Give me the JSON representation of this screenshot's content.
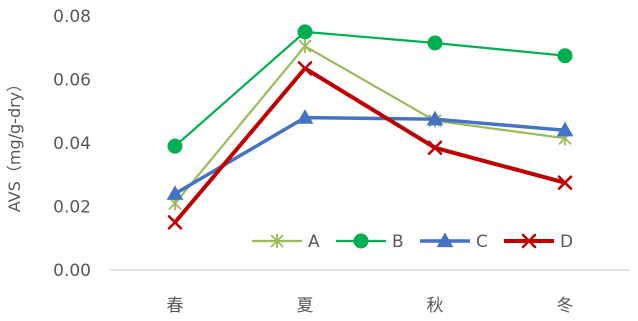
{
  "chart_data": {
    "type": "line",
    "categories": [
      "春",
      "夏",
      "秋",
      "冬"
    ],
    "ylabel": "AVS（mg/g-dry）",
    "ylim": [
      0,
      0.08
    ],
    "yticks": [
      "0.00",
      "0.02",
      "0.04",
      "0.06",
      "0.08"
    ],
    "grid": false,
    "legend": "bottom-right",
    "series": [
      {
        "name": "A",
        "color": "#9BBB59",
        "marker": "star",
        "values": [
          0.021,
          0.0705,
          0.047,
          0.0415
        ]
      },
      {
        "name": "B",
        "color": "#00B050",
        "marker": "circle",
        "values": [
          0.039,
          0.075,
          0.0715,
          0.0675
        ]
      },
      {
        "name": "C",
        "color": "#4472C4",
        "marker": "triangle",
        "values": [
          0.024,
          0.048,
          0.0475,
          0.044
        ]
      },
      {
        "name": "D",
        "color": "#C00000",
        "marker": "x",
        "values": [
          0.015,
          0.0635,
          0.0385,
          0.0275
        ]
      }
    ]
  }
}
